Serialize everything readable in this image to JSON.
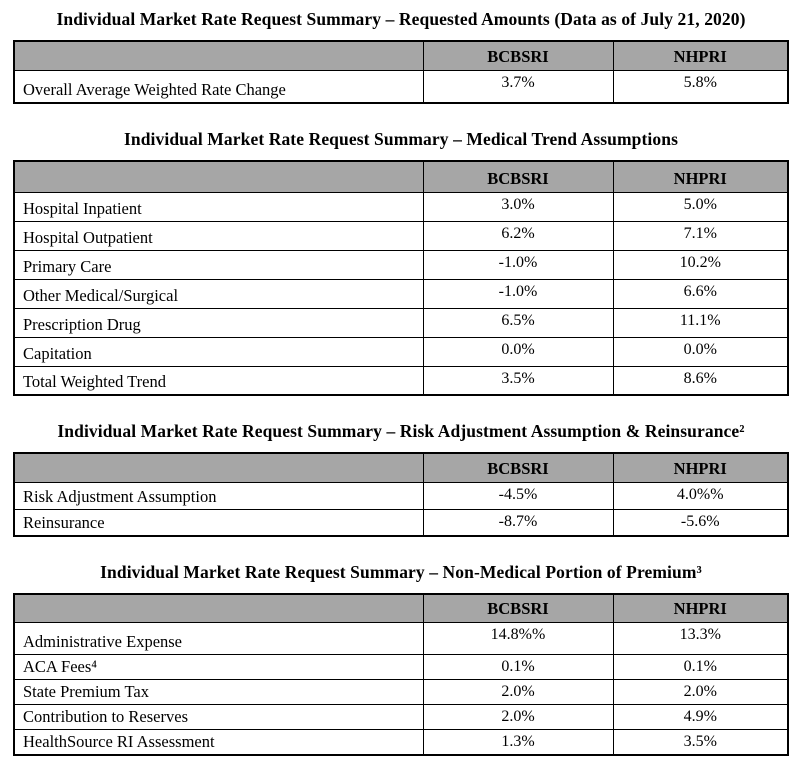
{
  "colors": {
    "header_background": "#a6a6a6",
    "border": "#000000",
    "text": "#000000",
    "page_background": "#ffffff"
  },
  "tables": [
    {
      "title": "Individual Market Rate Request Summary – Requested Amounts (Data as of July 21, 2020)",
      "columns": [
        "",
        "BCBSRI",
        "NHPRI"
      ],
      "rows": [
        {
          "label": "Overall Average Weighted Rate Change",
          "bcbsri": "3.7%",
          "nhpri": "5.8%"
        }
      ]
    },
    {
      "title": "Individual Market Rate Request Summary – Medical Trend Assumptions",
      "columns": [
        "",
        "BCBSRI",
        "NHPRI"
      ],
      "rows": [
        {
          "label": "Hospital Inpatient",
          "bcbsri": "3.0%",
          "nhpri": "5.0%"
        },
        {
          "label": "Hospital Outpatient",
          "bcbsri": "6.2%",
          "nhpri": "7.1%"
        },
        {
          "label": "Primary Care",
          "bcbsri": "-1.0%",
          "nhpri": "10.2%"
        },
        {
          "label": "Other Medical/Surgical",
          "bcbsri": "-1.0%",
          "nhpri": "6.6%"
        },
        {
          "label": "Prescription Drug",
          "bcbsri": "6.5%",
          "nhpri": "11.1%"
        },
        {
          "label": "Capitation",
          "bcbsri": "0.0%",
          "nhpri": "0.0%"
        },
        {
          "label": "Total Weighted Trend",
          "bcbsri": "3.5%",
          "nhpri": "8.6%"
        }
      ]
    },
    {
      "title": "Individual Market Rate Request Summary – Risk Adjustment Assumption & Reinsurance²",
      "columns": [
        "",
        "BCBSRI",
        "NHPRI"
      ],
      "rows": [
        {
          "label": "Risk Adjustment Assumption",
          "bcbsri": "-4.5%",
          "nhpri": "4.0%%"
        },
        {
          "label": "Reinsurance",
          "bcbsri": "-8.7%",
          "nhpri": "-5.6%"
        }
      ]
    },
    {
      "title": "Individual Market Rate Request Summary – Non-Medical Portion of Premium³",
      "columns": [
        "",
        "BCBSRI",
        "NHPRI"
      ],
      "rows": [
        {
          "label": "Administrative Expense",
          "bcbsri": "14.8%%",
          "nhpri": "13.3%"
        },
        {
          "label": "ACA Fees⁴",
          "bcbsri": "0.1%",
          "nhpri": "0.1%"
        },
        {
          "label": "State Premium Tax",
          "bcbsri": "2.0%",
          "nhpri": "2.0%"
        },
        {
          "label": "Contribution to Reserves",
          "bcbsri": "2.0%",
          "nhpri": "4.9%"
        },
        {
          "label": "HealthSource RI Assessment",
          "bcbsri": "1.3%",
          "nhpri": "3.5%"
        }
      ]
    }
  ]
}
